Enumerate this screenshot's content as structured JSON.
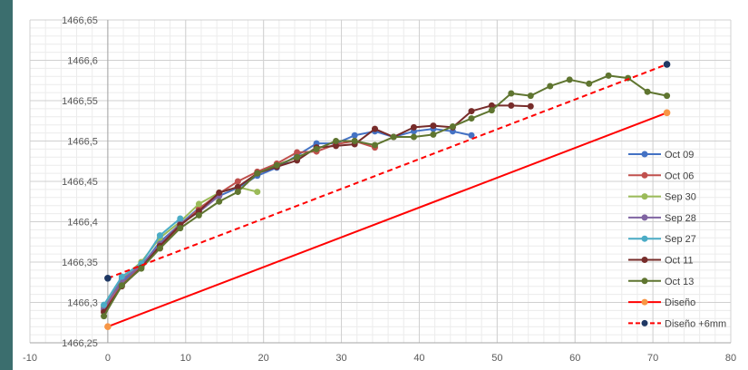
{
  "chart_data": {
    "type": "line",
    "title": "",
    "xlabel": "",
    "ylabel": "",
    "xlim": [
      -10,
      80
    ],
    "ylim": [
      1466.25,
      1466.65
    ],
    "x_ticks": [
      -10,
      0,
      10,
      20,
      30,
      40,
      50,
      60,
      70,
      80
    ],
    "y_ticks": [
      1466.25,
      1466.3,
      1466.35,
      1466.4,
      1466.45,
      1466.5,
      1466.55,
      1466.6,
      1466.65
    ],
    "x_tick_labels": [
      "-10",
      "0",
      "10",
      "20",
      "30",
      "40",
      "50",
      "60",
      "70",
      "80"
    ],
    "y_tick_labels": [
      "1466,25",
      "1466,3",
      "1466,35",
      "1466,4",
      "1466,45",
      "1466,5",
      "1466,55",
      "1466,6",
      "1466,65"
    ],
    "grid": true,
    "legend_position": "right",
    "series": [
      {
        "name": "Oct 09",
        "color": "#4472c4",
        "dashed": false,
        "markers": true,
        "x": [
          -0.5,
          1.8,
          4.3,
          6.7,
          9.3,
          11.7,
          14.3,
          16.7,
          19.2,
          21.7,
          24.3,
          26.8,
          29.3,
          31.7,
          34.3,
          36.7,
          39.3,
          41.8,
          44.3,
          46.7
        ],
        "y": [
          1466.295,
          1466.325,
          1466.345,
          1466.375,
          1466.397,
          1466.417,
          1466.432,
          1466.442,
          1466.457,
          1466.467,
          1466.482,
          1466.497,
          1466.497,
          1466.507,
          1466.512,
          1466.505,
          1466.512,
          1466.515,
          1466.512,
          1466.507
        ]
      },
      {
        "name": "Oct 06",
        "color": "#c0504d",
        "dashed": false,
        "markers": true,
        "x": [
          -0.5,
          1.8,
          4.3,
          6.7,
          9.3,
          11.7,
          14.3,
          16.7,
          19.2,
          21.7,
          24.3,
          26.8,
          29.3,
          31.7,
          34.3
        ],
        "y": [
          1466.29,
          1466.322,
          1466.344,
          1466.367,
          1466.395,
          1466.416,
          1466.435,
          1466.45,
          1466.462,
          1466.472,
          1466.486,
          1466.487,
          1466.496,
          1466.5,
          1466.492
        ]
      },
      {
        "name": "Sep 30",
        "color": "#9bbb59",
        "dashed": false,
        "markers": true,
        "x": [
          -0.5,
          1.8,
          4.3,
          6.7,
          9.3,
          11.7,
          14.3,
          16.7,
          19.2
        ],
        "y": [
          1466.295,
          1466.33,
          1466.35,
          1466.38,
          1466.4,
          1466.422,
          1466.436,
          1466.443,
          1466.437
        ]
      },
      {
        "name": "Sep 28",
        "color": "#8064a2",
        "dashed": false,
        "markers": true,
        "x": [
          -0.5,
          1.8,
          4.3,
          6.7,
          9.3,
          11.7,
          14.3
        ],
        "y": [
          1466.292,
          1466.328,
          1466.346,
          1466.372,
          1466.398,
          1466.412,
          1466.432
        ]
      },
      {
        "name": "Sep 27",
        "color": "#4bacc6",
        "dashed": false,
        "markers": true,
        "x": [
          -0.5,
          1.8,
          4.3,
          6.7,
          9.3
        ],
        "y": [
          1466.297,
          1466.332,
          1466.348,
          1466.383,
          1466.404
        ]
      },
      {
        "name": "Oct 11",
        "color": "#772c2a",
        "dashed": false,
        "markers": true,
        "x": [
          -0.5,
          1.8,
          4.3,
          6.7,
          9.3,
          11.7,
          14.3,
          16.7,
          19.2,
          21.7,
          24.3,
          26.8,
          29.3,
          31.7,
          34.3,
          36.7,
          39.3,
          41.8,
          44.3,
          46.7,
          49.3,
          51.8,
          54.3
        ],
        "y": [
          1466.288,
          1466.32,
          1466.343,
          1466.37,
          1466.396,
          1466.413,
          1466.436,
          1466.443,
          1466.46,
          1466.468,
          1466.476,
          1466.492,
          1466.494,
          1466.496,
          1466.515,
          1466.505,
          1466.517,
          1466.519,
          1466.517,
          1466.537,
          1466.544,
          1466.544,
          1466.543
        ]
      },
      {
        "name": "Oct 13",
        "color": "#5f7530",
        "dashed": false,
        "markers": true,
        "x": [
          -0.5,
          1.8,
          4.3,
          6.7,
          9.3,
          11.7,
          14.3,
          16.7,
          19.2,
          21.7,
          24.3,
          26.8,
          29.3,
          31.7,
          34.3,
          36.7,
          39.3,
          41.8,
          44.3,
          46.7,
          49.3,
          51.8,
          54.3,
          56.8,
          59.3,
          61.8,
          64.3,
          66.8,
          69.3,
          71.8
        ],
        "y": [
          1466.283,
          1466.321,
          1466.342,
          1466.367,
          1466.392,
          1466.408,
          1466.425,
          1466.437,
          1466.46,
          1466.47,
          1466.48,
          1466.49,
          1466.5,
          1466.5,
          1466.495,
          1466.505,
          1466.505,
          1466.508,
          1466.518,
          1466.528,
          1466.538,
          1466.559,
          1466.556,
          1466.568,
          1466.576,
          1466.571,
          1466.581,
          1466.578,
          1466.561,
          1466.556
        ]
      },
      {
        "name": "Diseño",
        "color": "#ff0000",
        "dashed": false,
        "markers": "ends",
        "marker_color": "#f79646",
        "x": [
          0,
          71.8
        ],
        "y": [
          1466.27,
          1466.535
        ]
      },
      {
        "name": "Diseño +6mm",
        "color": "#ff0000",
        "dashed": true,
        "markers": "ends",
        "marker_color": "#1f3864",
        "x": [
          0,
          71.8
        ],
        "y": [
          1466.33,
          1466.595
        ]
      }
    ]
  }
}
